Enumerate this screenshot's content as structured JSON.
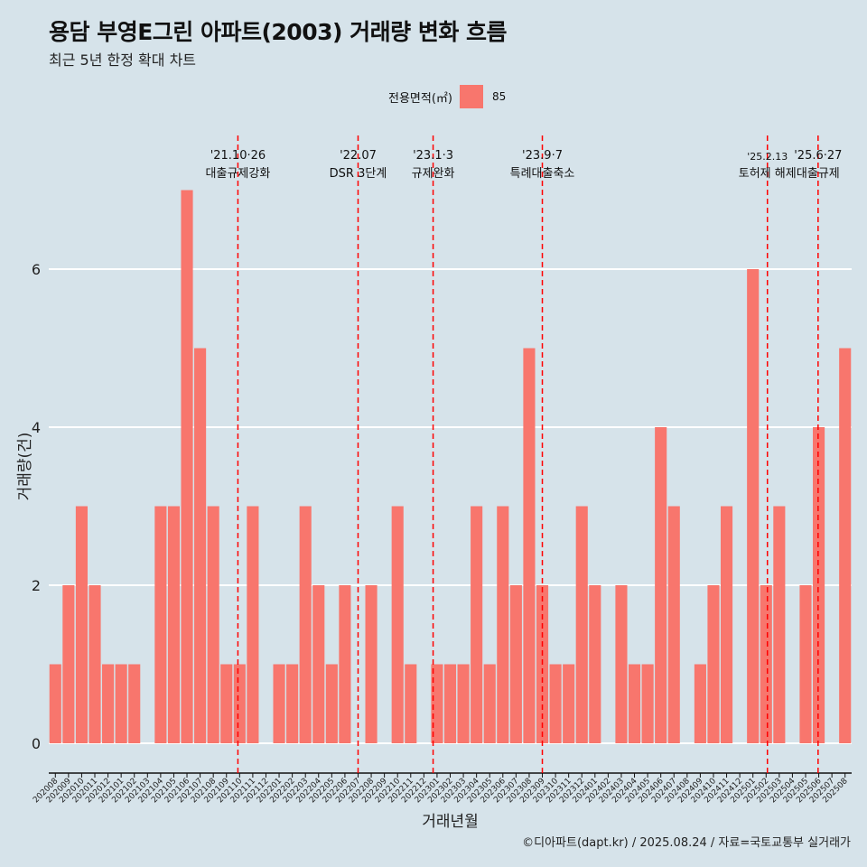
{
  "header": {
    "title": "용담 부영E그린 아파트(2003) 거래량 변화 흐름",
    "subtitle": "최근 5년 한정 확대 차트"
  },
  "legend": {
    "title": "전용면적(㎡)",
    "entry": "85"
  },
  "caption": "©디아파트(dapt.kr) / 2025.08.24 / 자료=국토교통부 실거래가",
  "colors": {
    "bar": "#f8766d",
    "background": "#d6e3ea",
    "event_line": "#ff0000",
    "grid": "#ffffff"
  },
  "chart_data": {
    "type": "bar",
    "xlabel": "거래년월",
    "ylabel": "거래량(건)",
    "ylim": [
      0,
      7
    ],
    "yticks": [
      0,
      2,
      4,
      6
    ],
    "grid": true,
    "legend_position": "top",
    "categories": [
      "202008",
      "202009",
      "202010",
      "202011",
      "202012",
      "202101",
      "202102",
      "202103",
      "202104",
      "202105",
      "202106",
      "202107",
      "202108",
      "202109",
      "202110",
      "202111",
      "202112",
      "202201",
      "202202",
      "202203",
      "202204",
      "202205",
      "202206",
      "202207",
      "202208",
      "202209",
      "202210",
      "202211",
      "202212",
      "202301",
      "202302",
      "202303",
      "202304",
      "202305",
      "202306",
      "202307",
      "202308",
      "202309",
      "202310",
      "202311",
      "202312",
      "202401",
      "202402",
      "202403",
      "202404",
      "202405",
      "202406",
      "202407",
      "202408",
      "202409",
      "202410",
      "202411",
      "202412",
      "202501",
      "202502",
      "202503",
      "202504",
      "202505",
      "202506",
      "202507",
      "202508"
    ],
    "series": [
      {
        "name": "85",
        "values": [
          1,
          2,
          3,
          2,
          1,
          1,
          1,
          0,
          3,
          3,
          7,
          5,
          3,
          1,
          1,
          3,
          0,
          1,
          1,
          3,
          2,
          1,
          2,
          0,
          2,
          0,
          3,
          1,
          0,
          1,
          1,
          1,
          3,
          1,
          3,
          2,
          5,
          2,
          1,
          1,
          3,
          2,
          0,
          2,
          1,
          1,
          4,
          3,
          0,
          1,
          2,
          3,
          0,
          6,
          2,
          3,
          0,
          2,
          4,
          0,
          5
        ]
      }
    ],
    "events": [
      {
        "category": "202110",
        "date": "'21.10·26",
        "label": "대출규제강화"
      },
      {
        "category": "202207",
        "date": "'22.07",
        "label": "DSR 3단계"
      },
      {
        "category": "202301",
        "date": "'23.1·3",
        "label": "규제완화"
      },
      {
        "category": "202309",
        "date": "'23.9·7",
        "label": "특례대출축소"
      },
      {
        "category": "202502",
        "date": "'25.2.13",
        "label": "토허제 해제"
      },
      {
        "category": "202506",
        "date": "'25.6·27",
        "label": "대출규제"
      }
    ]
  }
}
